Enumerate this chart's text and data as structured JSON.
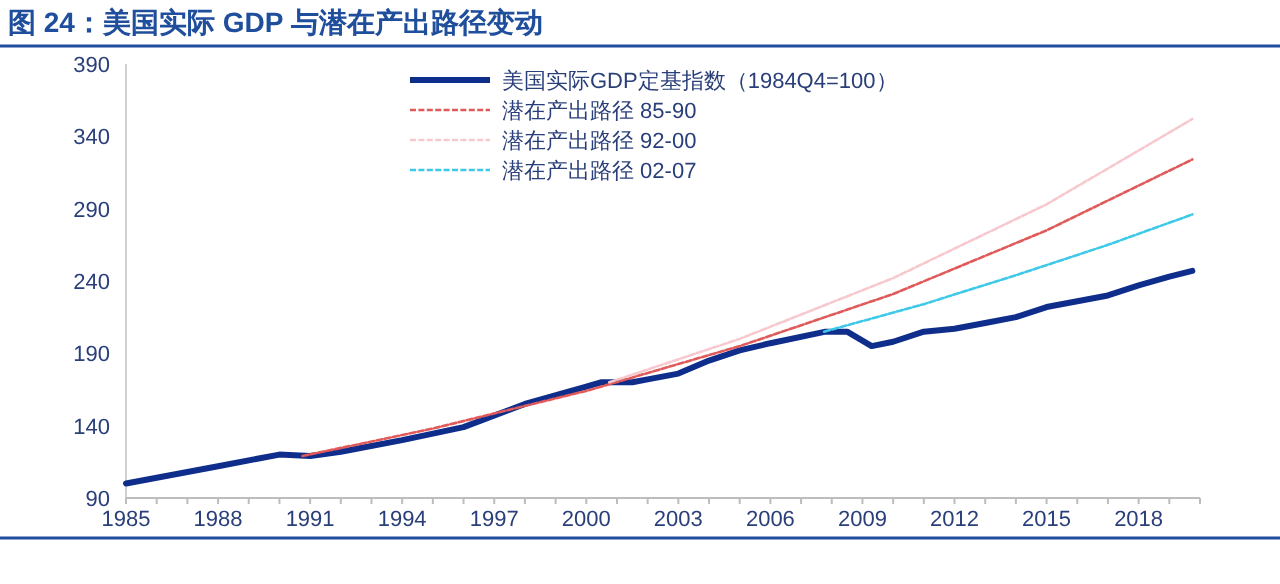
{
  "chart_data": {
    "type": "line",
    "title": "图 24：美国实际 GDP 与潜在产出路径变动",
    "xlim": [
      1985,
      2020
    ],
    "ylim": [
      90,
      390
    ],
    "yticks": [
      90,
      140,
      190,
      240,
      290,
      340,
      390
    ],
    "xticks": [
      1985,
      {
        "value": 1986,
        "label": null
      },
      {
        "value": 1987,
        "label": null
      },
      1988,
      {
        "value": 1989,
        "label": null
      },
      {
        "value": 1990,
        "label": null
      },
      1991,
      {
        "value": 1992,
        "label": null
      },
      {
        "value": 1993,
        "label": null
      },
      1994,
      {
        "value": 1995,
        "label": null
      },
      {
        "value": 1996,
        "label": null
      },
      1997,
      {
        "value": 1998,
        "label": null
      },
      {
        "value": 1999,
        "label": null
      },
      2000,
      {
        "value": 2001,
        "label": null
      },
      {
        "value": 2002,
        "label": null
      },
      2003,
      {
        "value": 2004,
        "label": null
      },
      {
        "value": 2005,
        "label": null
      },
      2006,
      {
        "value": 2007,
        "label": null
      },
      {
        "value": 2008,
        "label": null
      },
      2009,
      {
        "value": 2010,
        "label": null
      },
      {
        "value": 2011,
        "label": null
      },
      2012,
      {
        "value": 2013,
        "label": null
      },
      {
        "value": 2014,
        "label": null
      },
      2015,
      {
        "value": 2016,
        "label": null
      },
      {
        "value": 2017,
        "label": null
      },
      2018,
      {
        "value": 2019,
        "label": null
      },
      {
        "value": 2020,
        "label": null
      }
    ],
    "grid": false,
    "legend": "top",
    "series": [
      {
        "name": "美国实际GDP定基指数（1984Q4=100）",
        "color": "#0f2e8c",
        "line_style": "solid",
        "x": [
          1985,
          1988,
          1990,
          1991,
          1992,
          1994,
          1996,
          1998,
          2000,
          2000.5,
          2001.5,
          2002,
          2003,
          2004,
          2005,
          2006,
          2007.8,
          2008.5,
          2009.3,
          2010,
          2011,
          2012,
          2013,
          2014,
          2015,
          2016,
          2017,
          2018,
          2019,
          2019.75
        ],
        "values": [
          100,
          112,
          120,
          119,
          122,
          130,
          139,
          155,
          167,
          170,
          170,
          172,
          176,
          185,
          192,
          197,
          205,
          205,
          195,
          198,
          205,
          207,
          211,
          215,
          222,
          226,
          230,
          237,
          243,
          247
        ]
      },
      {
        "name": "潜在产出路径 85-90",
        "color": "#e05a5a",
        "line_style": "dashed",
        "x": [
          1990.75,
          1995,
          2000,
          2005,
          2010,
          2015,
          2019.75
        ],
        "values": [
          119,
          138,
          164,
          195,
          231,
          275,
          324
        ]
      },
      {
        "name": "潜在产出路径 92-00",
        "color": "#f7c9cf",
        "line_style": "dashed",
        "x": [
          2000.75,
          2005,
          2010,
          2015,
          2019.75
        ],
        "values": [
          170,
          200,
          242,
          293,
          352
        ]
      },
      {
        "name": "潜在产出路径 02-07",
        "color": "#3ec9e8",
        "line_style": "dashed",
        "x": [
          2007.75,
          2011,
          2014,
          2017,
          2019.75
        ],
        "values": [
          205,
          224,
          244,
          265,
          286
        ]
      }
    ]
  }
}
